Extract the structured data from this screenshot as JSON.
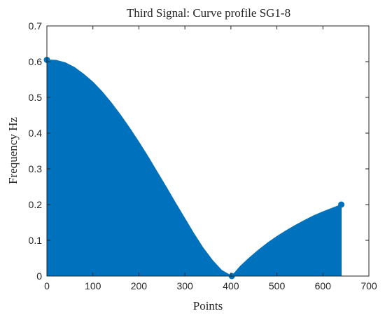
{
  "chart_data": {
    "type": "area",
    "title": "Third Signal: Curve profile SG1-8",
    "xlabel": "Points",
    "ylabel": "Frequency Hz",
    "xlim": [
      0,
      700
    ],
    "ylim": [
      0,
      0.7
    ],
    "xticks": [
      "0",
      "100",
      "200",
      "300",
      "400",
      "500",
      "600",
      "700"
    ],
    "yticks": [
      "0",
      "0.1",
      "0.2",
      "0.3",
      "0.4",
      "0.5",
      "0.6",
      "0.7"
    ],
    "grid": false,
    "color": "#0072BD",
    "series": [
      {
        "x": [
          0,
          20,
          40,
          60,
          80,
          100,
          120,
          140,
          160,
          180,
          200,
          220,
          240,
          260,
          280,
          300,
          320,
          340,
          360,
          380,
          402,
          420,
          440,
          460,
          480,
          500,
          520,
          540,
          560,
          580,
          600,
          620,
          640
        ],
        "y": [
          0.605,
          0.604,
          0.597,
          0.584,
          0.565,
          0.543,
          0.516,
          0.485,
          0.451,
          0.414,
          0.375,
          0.334,
          0.291,
          0.248,
          0.204,
          0.161,
          0.118,
          0.078,
          0.044,
          0.016,
          0.0,
          0.027,
          0.051,
          0.073,
          0.093,
          0.111,
          0.127,
          0.142,
          0.156,
          0.169,
          0.18,
          0.19,
          0.2
        ]
      }
    ],
    "markers": [
      {
        "x": 0,
        "y": 0.605
      },
      {
        "x": 402,
        "y": 0.0
      },
      {
        "x": 640,
        "y": 0.2
      }
    ]
  }
}
